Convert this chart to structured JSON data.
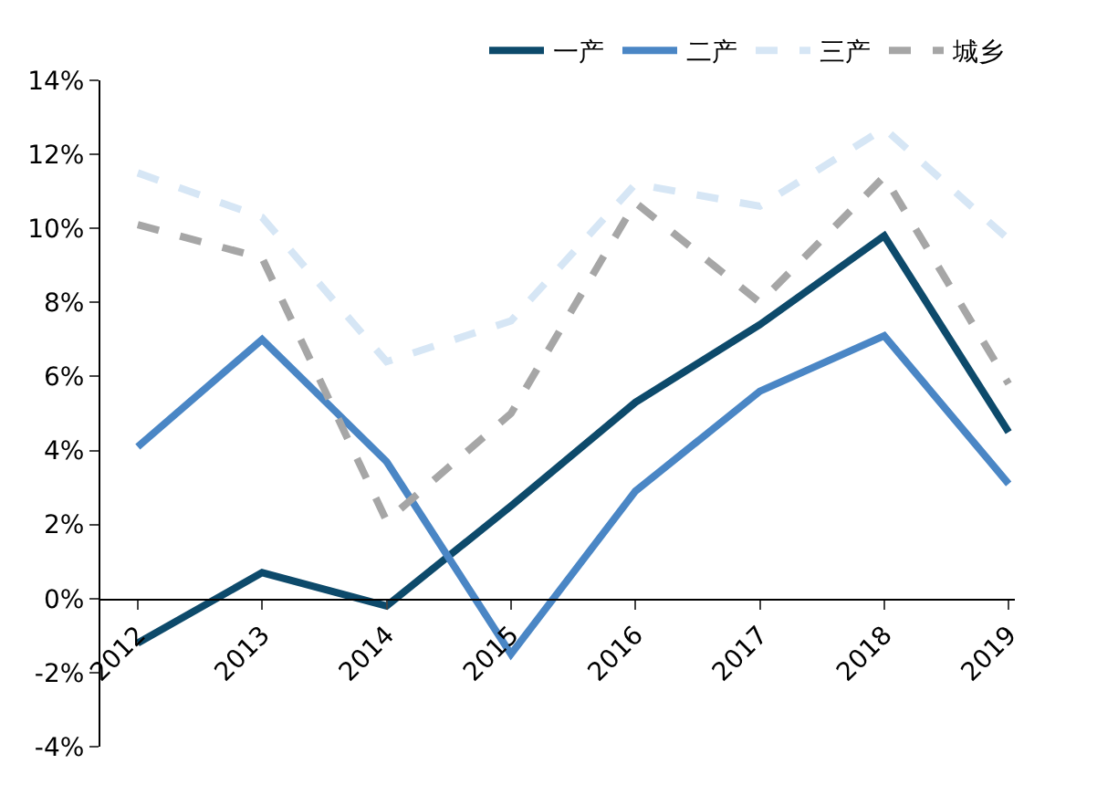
{
  "chart_data": {
    "type": "line",
    "categories": [
      "2012",
      "2013",
      "2014",
      "2015",
      "2016",
      "2017",
      "2018",
      "2019"
    ],
    "series": [
      {
        "name": "一产",
        "color": "#0d4a6b",
        "line_style": "solid",
        "values": [
          -1.2,
          0.7,
          -0.2,
          2.5,
          5.3,
          7.4,
          9.8,
          4.5
        ]
      },
      {
        "name": "二产",
        "color": "#4a86c5",
        "line_style": "solid",
        "values": [
          4.1,
          7.0,
          3.7,
          -1.5,
          2.9,
          5.6,
          7.1,
          3.1
        ]
      },
      {
        "name": "三产",
        "color": "#d6e6f5",
        "line_style": "dashed",
        "values": [
          11.5,
          10.3,
          6.4,
          7.5,
          11.2,
          10.6,
          12.7,
          9.7
        ]
      },
      {
        "name": "城乡",
        "color": "#a6a6a6",
        "line_style": "dashed",
        "values": [
          10.1,
          9.2,
          2.1,
          5.0,
          10.7,
          8.0,
          11.4,
          5.8
        ]
      }
    ],
    "ylim": [
      -4,
      14
    ],
    "yticks": [
      {
        "value": -4,
        "label": "-4%"
      },
      {
        "value": -2,
        "label": "-2%"
      },
      {
        "value": 0,
        "label": "0%"
      },
      {
        "value": 2,
        "label": "2%"
      },
      {
        "value": 4,
        "label": "4%"
      },
      {
        "value": 6,
        "label": "6%"
      },
      {
        "value": 8,
        "label": "8%"
      },
      {
        "value": 10,
        "label": "10%"
      },
      {
        "value": 12,
        "label": "12%"
      },
      {
        "value": 14,
        "label": "14%"
      }
    ],
    "legend": "top right",
    "marker": "none"
  }
}
